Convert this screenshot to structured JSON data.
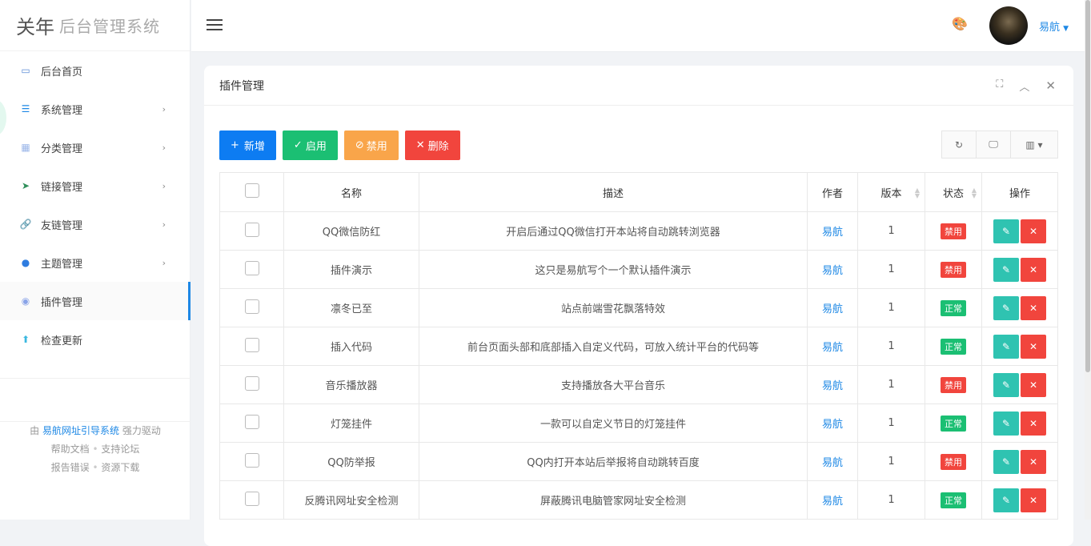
{
  "app": {
    "logo_mark": "关年",
    "title": "后台管理系统"
  },
  "sidebar": {
    "items": [
      {
        "label": "后台首页",
        "icon": "monitor-icon",
        "color": "#5b8bd6",
        "has_sub": false
      },
      {
        "label": "系统管理",
        "icon": "sliders-icon",
        "color": "#1e88e5",
        "has_sub": true
      },
      {
        "label": "分类管理",
        "icon": "grid-icon",
        "color": "#9bb6e8",
        "has_sub": true
      },
      {
        "label": "链接管理",
        "icon": "send-icon",
        "color": "#2f8f5a",
        "has_sub": true
      },
      {
        "label": "友链管理",
        "icon": "link-icon",
        "color": "#3aa0d8",
        "has_sub": true
      },
      {
        "label": "主题管理",
        "icon": "palette-icon",
        "color": "#2f7de0",
        "has_sub": true
      },
      {
        "label": "插件管理",
        "icon": "plugin-icon",
        "color": "#8aa4e8",
        "has_sub": false,
        "active": true
      },
      {
        "label": "检查更新",
        "icon": "upload-icon",
        "color": "#3bb8e0",
        "has_sub": false
      }
    ],
    "footer": {
      "prefix": "由",
      "link": "易航网址引导系统",
      "suffix": "强力驱动",
      "links1": [
        "帮助文档",
        "支持论坛"
      ],
      "links2": [
        "报告错误",
        "资源下载"
      ],
      "sep": "•"
    }
  },
  "header": {
    "user": "易航"
  },
  "card": {
    "title": "插件管理"
  },
  "toolbar": {
    "add": "新增",
    "enable": "启用",
    "disable": "禁用",
    "delete": "删除"
  },
  "colors": {
    "add": "#0d7cf2",
    "enable": "#1bbf73",
    "disable": "#f9a54a",
    "delete": "#f1453d",
    "edit": "#2fc3b1",
    "normal": "#1bbf73",
    "disabled": "#f1453d"
  },
  "table": {
    "columns": [
      "名称",
      "描述",
      "作者",
      "版本",
      "状态",
      "操作"
    ],
    "rows": [
      {
        "name": "QQ微信防红",
        "desc": "开启后通过QQ微信打开本站将自动跳转浏览器",
        "author": "易航",
        "version": "1",
        "status": "禁用"
      },
      {
        "name": "插件演示",
        "desc": "这只是易航写个一个默认插件演示",
        "author": "易航",
        "version": "1",
        "status": "禁用"
      },
      {
        "name": "凛冬已至",
        "desc": "站点前端雪花飘落特效",
        "author": "易航",
        "version": "1",
        "status": "正常"
      },
      {
        "name": "插入代码",
        "desc": "前台页面头部和底部插入自定义代码，可放入统计平台的代码等",
        "author": "易航",
        "version": "1",
        "status": "正常"
      },
      {
        "name": "音乐播放器",
        "desc": "支持播放各大平台音乐",
        "author": "易航",
        "version": "1",
        "status": "禁用"
      },
      {
        "name": "灯笼挂件",
        "desc": "一款可以自定义节日的灯笼挂件",
        "author": "易航",
        "version": "1",
        "status": "正常"
      },
      {
        "name": "QQ防举报",
        "desc": "QQ内打开本站后举报将自动跳转百度",
        "author": "易航",
        "version": "1",
        "status": "禁用"
      },
      {
        "name": "反腾讯网址安全检测",
        "desc": "屏蔽腾讯电脑管家网址安全检测",
        "author": "易航",
        "version": "1",
        "status": "正常"
      }
    ]
  }
}
